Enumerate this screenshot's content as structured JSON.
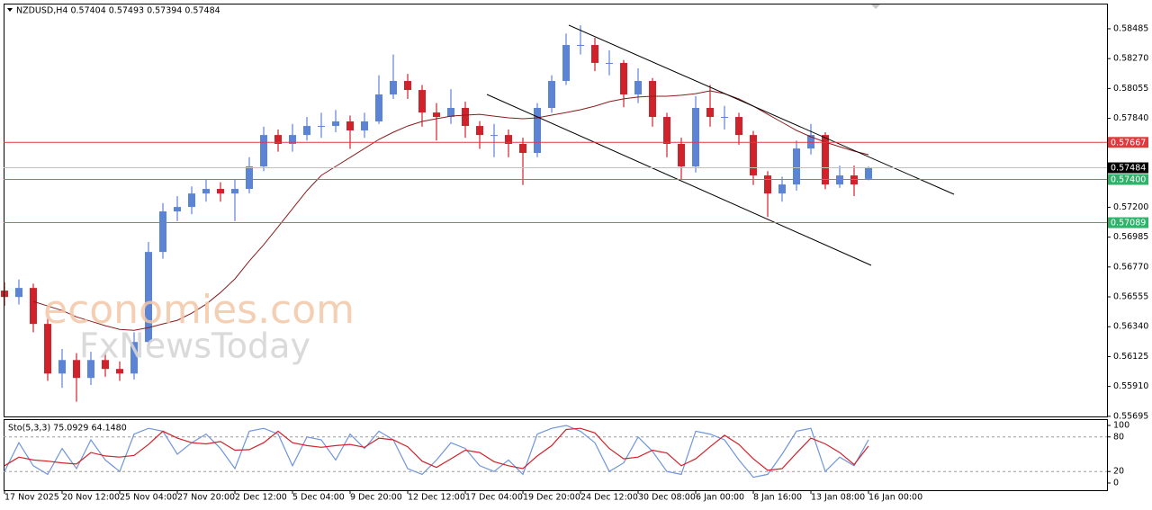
{
  "chart_data": [
    {
      "type": "candlestick",
      "title": "NZDUSD,H4  0.57404 0.57493 0.57394 0.57484",
      "watermark": [
        "economies.com",
        "FxNewsToday"
      ],
      "categories": [
        "17 Nov 2025",
        null,
        null,
        null,
        "20 Nov 12:00",
        null,
        null,
        null,
        "25 Nov 04:00",
        null,
        null,
        null,
        "27 Nov 20:00",
        null,
        null,
        null,
        "2 Dec 12:00",
        null,
        null,
        null,
        "5 Dec 04:00",
        null,
        null,
        null,
        "9 Dec 20:00",
        null,
        null,
        null,
        "12 Dec 12:00",
        null,
        null,
        null,
        "17 Dec 04:00",
        null,
        null,
        null,
        "19 Dec 20:00",
        null,
        null,
        null,
        "24 Dec 12:00",
        null,
        null,
        null,
        "30 Dec 08:00",
        null,
        null,
        null,
        "6 Jan 00:00",
        null,
        null,
        null,
        "8 Jan 16:00",
        null,
        null,
        null,
        "13 Jan 08:00",
        null,
        null,
        null,
        "16 Jan 00:00"
      ],
      "open": [
        0.566,
        0.56554,
        0.56619,
        0.5636,
        0.56003,
        0.561,
        0.55971,
        0.561,
        0.56036,
        0.56003,
        0.5623,
        0.56878,
        0.5717,
        0.57202,
        0.57299,
        0.57332,
        0.57299,
        0.57332,
        0.57494,
        0.5772,
        0.57656,
        0.5772,
        0.57785,
        0.57785,
        0.57818,
        0.57753,
        0.57818,
        0.58012,
        0.58109,
        0.58044,
        0.57882,
        0.5785,
        0.57915,
        0.57785,
        0.5772,
        0.5772,
        0.57656,
        0.57591,
        0.57915,
        0.58109,
        0.58368,
        0.58368,
        0.58239,
        0.58239,
        0.58012,
        0.58109,
        0.5785,
        0.57656,
        0.57494,
        0.57915,
        0.5785,
        0.5785,
        0.5772,
        0.57429,
        0.57299,
        0.57364,
        0.57623,
        0.5772,
        0.57364,
        0.57429,
        0.57404
      ],
      "high": [
        0.5666,
        0.5668,
        0.5665,
        0.564,
        0.5618,
        0.5615,
        0.5616,
        0.5615,
        0.5609,
        0.563,
        0.5695,
        0.5723,
        0.5728,
        0.5735,
        0.574,
        0.5738,
        0.574,
        0.5756,
        0.5778,
        0.5776,
        0.578,
        0.5785,
        0.5788,
        0.579,
        0.5786,
        0.5788,
        0.5815,
        0.583,
        0.5816,
        0.5808,
        0.5795,
        0.5805,
        0.5796,
        0.5782,
        0.578,
        0.5776,
        0.577,
        0.5795,
        0.5815,
        0.5845,
        0.5851,
        0.5842,
        0.5833,
        0.5826,
        0.582,
        0.5813,
        0.5788,
        0.577,
        0.58,
        0.5808,
        0.5793,
        0.5788,
        0.5775,
        0.5746,
        0.5742,
        0.5768,
        0.578,
        0.5774,
        0.575,
        0.575,
        0.57493
      ],
      "low": [
        0.5649,
        0.565,
        0.563,
        0.5595,
        0.559,
        0.558,
        0.5592,
        0.5598,
        0.5595,
        0.5596,
        0.562,
        0.5683,
        0.571,
        0.5715,
        0.5724,
        0.5724,
        0.571,
        0.573,
        0.5746,
        0.576,
        0.576,
        0.5768,
        0.577,
        0.5774,
        0.5762,
        0.577,
        0.578,
        0.5798,
        0.5798,
        0.5778,
        0.5768,
        0.578,
        0.577,
        0.5762,
        0.5756,
        0.5756,
        0.5736,
        0.5756,
        0.5788,
        0.5808,
        0.583,
        0.5818,
        0.5815,
        0.5792,
        0.5795,
        0.5778,
        0.5756,
        0.574,
        0.5745,
        0.5778,
        0.5776,
        0.5765,
        0.5736,
        0.5713,
        0.5724,
        0.5732,
        0.5758,
        0.5733,
        0.5734,
        0.5728,
        0.57394
      ],
      "close": [
        0.56554,
        0.56619,
        0.5636,
        0.56003,
        0.561,
        0.55971,
        0.561,
        0.56036,
        0.56003,
        0.5623,
        0.56878,
        0.5717,
        0.57202,
        0.57299,
        0.57332,
        0.57299,
        0.57332,
        0.57494,
        0.5772,
        0.57656,
        0.5772,
        0.57785,
        0.57785,
        0.57818,
        0.57753,
        0.57818,
        0.58012,
        0.58109,
        0.58044,
        0.57882,
        0.5785,
        0.57915,
        0.57785,
        0.5772,
        0.5772,
        0.57656,
        0.57591,
        0.57915,
        0.58109,
        0.58368,
        0.58368,
        0.58239,
        0.58239,
        0.58012,
        0.58109,
        0.5785,
        0.57656,
        0.57494,
        0.57915,
        0.5785,
        0.5785,
        0.5772,
        0.57429,
        0.57299,
        0.57364,
        0.57623,
        0.5772,
        0.57364,
        0.57429,
        0.57364,
        0.57484
      ],
      "up_color": "#5b83d6",
      "down_color": "#d0222a",
      "overlay": {
        "color": "#8b1c1c",
        "values": [
          null,
          null,
          0.56522,
          0.56489,
          0.56457,
          0.56411,
          0.56379,
          0.56347,
          0.56321,
          0.56314,
          0.56334,
          0.5636,
          0.56386,
          0.56437,
          0.56502,
          0.56586,
          0.56684,
          0.56813,
          0.5693,
          0.57059,
          0.57189,
          0.57319,
          0.57429,
          0.57494,
          0.57558,
          0.57623,
          0.57688,
          0.5774,
          0.57785,
          0.57818,
          0.57837,
          0.57856,
          0.57863,
          0.57869,
          0.57856,
          0.57844,
          0.57837,
          0.57844,
          0.57863,
          0.57882,
          0.57902,
          0.57928,
          0.5796,
          0.5798,
          0.57993,
          0.57999,
          0.57999,
          0.58006,
          0.58018,
          0.58038,
          0.58018,
          0.5798,
          0.57928,
          0.57869,
          0.57811,
          0.57753,
          0.57707,
          0.57669,
          0.57636,
          0.57604,
          0.57578
        ]
      },
      "levels": [
        {
          "value": 0.57667,
          "color": "#e0393e"
        },
        {
          "value": 0.57484,
          "color": "#c0c0c0",
          "box": "#000000"
        },
        {
          "value": 0.574,
          "label": "0.57400",
          "color": "#2fb36a"
        },
        {
          "value": 0.57089,
          "color": "#2fb36a"
        }
      ],
      "ylim": [
        0.55694,
        0.58666
      ],
      "yticks": [
        0.58485,
        {
          "value": 0.5827,
          "label": "0.58270"
        },
        0.58055,
        {
          "value": 0.5784,
          "label": "0.57840"
        },
        {
          "value": 0.572,
          "label": "0.57200"
        },
        0.56985,
        {
          "value": 0.5677,
          "label": "0.56770"
        },
        0.56555,
        {
          "value": 0.5634,
          "label": "0.56340"
        },
        0.56125,
        {
          "value": 0.5591,
          "label": "0.55910"
        },
        0.55695
      ]
    },
    {
      "type": "line",
      "title": "Sto(5,3,3) 75.0929 64.1480",
      "series": [
        {
          "color": "#6f95dc",
          "values": [
            20,
            70,
            30,
            15,
            60,
            25,
            75,
            40,
            20,
            85,
            95,
            90,
            50,
            70,
            85,
            60,
            25,
            90,
            95,
            85,
            30,
            80,
            75,
            40,
            85,
            60,
            90,
            75,
            25,
            15,
            40,
            70,
            60,
            30,
            20,
            40,
            15,
            85,
            95,
            100,
            90,
            70,
            20,
            35,
            80,
            55,
            20,
            15,
            90,
            85,
            75,
            40,
            10,
            15,
            50,
            90,
            95,
            20,
            45,
            30,
            75.0929
          ]
        },
        {
          "color": "#d0222a",
          "values": [
            30,
            45,
            40,
            38,
            35,
            33,
            53,
            47,
            45,
            48,
            67,
            90,
            78,
            70,
            68,
            72,
            57,
            58,
            70,
            90,
            70,
            65,
            62,
            65,
            67,
            62,
            78,
            75,
            63,
            38,
            27,
            42,
            57,
            53,
            37,
            30,
            25,
            47,
            65,
            93,
            95,
            87,
            60,
            42,
            45,
            57,
            52,
            30,
            42,
            63,
            83,
            67,
            42,
            22,
            25,
            52,
            78,
            68,
            53,
            32,
            64.148
          ]
        }
      ],
      "levels": [
        80,
        20
      ],
      "ylim": [
        -12.5,
        110.9
      ],
      "yticks": [
        100,
        80,
        20,
        0
      ]
    }
  ]
}
